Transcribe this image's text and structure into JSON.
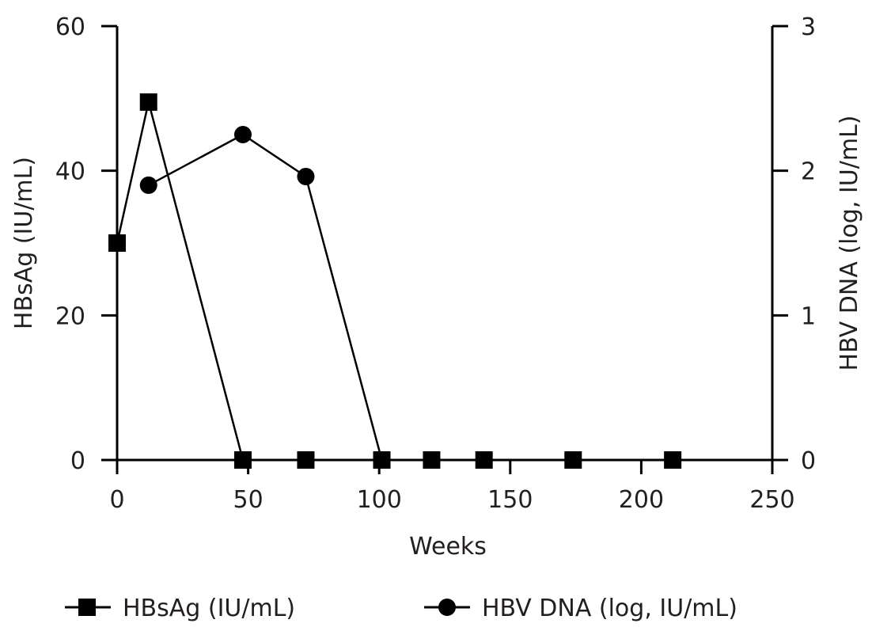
{
  "chart_data": {
    "type": "line",
    "x_axis": {
      "label": "Weeks",
      "range": [
        0,
        250
      ],
      "ticks": [
        0,
        50,
        100,
        150,
        200,
        250
      ]
    },
    "y_axis_left": {
      "label": "HBsAg (IU/mL)",
      "range": [
        0,
        60
      ],
      "ticks": [
        0,
        20,
        40,
        60
      ]
    },
    "y_axis_right": {
      "label": "HBV DNA (log, IU/mL)",
      "range": [
        0,
        3
      ],
      "ticks": [
        0,
        1,
        2,
        3
      ]
    },
    "grid": false,
    "legend_position": "bottom",
    "series": [
      {
        "name": "HBsAg (IU/mL)",
        "axis": "left",
        "marker": "square",
        "color": "#000000",
        "points": [
          {
            "x": 0,
            "y": 30
          },
          {
            "x": 12,
            "y": 49.5
          },
          {
            "x": 48,
            "y": 0
          },
          {
            "x": 72,
            "y": 0
          },
          {
            "x": 101,
            "y": 0
          },
          {
            "x": 120,
            "y": 0
          },
          {
            "x": 140,
            "y": 0
          },
          {
            "x": 174,
            "y": 0
          },
          {
            "x": 212,
            "y": 0
          }
        ]
      },
      {
        "name": "HBV DNA (log, IU/mL)",
        "axis": "right",
        "marker": "circle",
        "color": "#000000",
        "points": [
          {
            "x": 12,
            "y": 1.9
          },
          {
            "x": 48,
            "y": 2.25
          },
          {
            "x": 72,
            "y": 1.96
          },
          {
            "x": 101,
            "y": 0
          }
        ]
      }
    ]
  }
}
